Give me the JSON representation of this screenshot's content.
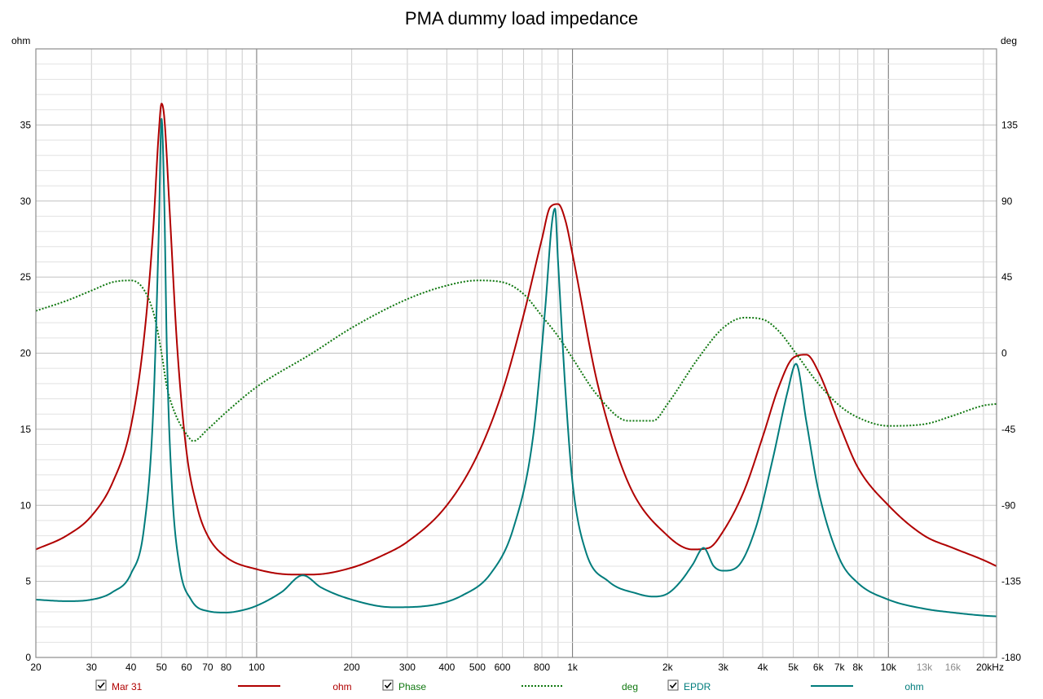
{
  "chart_data": {
    "type": "line",
    "title": "PMA dummy load impedance",
    "left_axis": {
      "unit": "ohm",
      "range": [
        0,
        40
      ],
      "ticks": [
        0,
        5,
        10,
        15,
        20,
        25,
        30,
        35
      ]
    },
    "right_axis": {
      "unit": "deg",
      "range": [
        -180,
        180
      ],
      "ticks": [
        -180,
        -135,
        -90,
        -45,
        0,
        45,
        90,
        135
      ]
    },
    "x_axis": {
      "scale": "log",
      "range": [
        20,
        22000
      ],
      "unit": "Hz",
      "tick_labels": [
        {
          "f": 20,
          "label": "20"
        },
        {
          "f": 30,
          "label": "30"
        },
        {
          "f": 40,
          "label": "40"
        },
        {
          "f": 50,
          "label": "50"
        },
        {
          "f": 60,
          "label": "60"
        },
        {
          "f": 70,
          "label": "70"
        },
        {
          "f": 80,
          "label": "80"
        },
        {
          "f": 100,
          "label": "100"
        },
        {
          "f": 200,
          "label": "200"
        },
        {
          "f": 300,
          "label": "300"
        },
        {
          "f": 400,
          "label": "400"
        },
        {
          "f": 500,
          "label": "500"
        },
        {
          "f": 600,
          "label": "600"
        },
        {
          "f": 800,
          "label": "800"
        },
        {
          "f": 1000,
          "label": "1k"
        },
        {
          "f": 2000,
          "label": "2k"
        },
        {
          "f": 3000,
          "label": "3k"
        },
        {
          "f": 4000,
          "label": "4k"
        },
        {
          "f": 5000,
          "label": "5k"
        },
        {
          "f": 6000,
          "label": "6k"
        },
        {
          "f": 7000,
          "label": "7k"
        },
        {
          "f": 8000,
          "label": "8k"
        },
        {
          "f": 10000,
          "label": "10k"
        },
        {
          "f": 13000,
          "label": "13k",
          "faded": true
        },
        {
          "f": 16000,
          "label": "16k",
          "faded": true
        },
        {
          "f": 20000,
          "label": "20kHz"
        }
      ]
    },
    "grid": true,
    "series": [
      {
        "name": "Mar 31",
        "unit": "ohm",
        "axis": "left",
        "color": "#b00000",
        "style": "solid",
        "x": [
          20,
          25,
          30,
          35,
          40,
          44,
          47,
          49,
          50,
          51,
          53,
          56,
          60,
          65,
          70,
          80,
          100,
          130,
          150,
          200,
          250,
          300,
          400,
          500,
          600,
          700,
          800,
          850,
          900,
          950,
          1000,
          1200,
          1500,
          2000,
          2400,
          2700,
          3000,
          3500,
          4000,
          4500,
          5000,
          5500,
          6000,
          7000,
          8000,
          10000,
          13000,
          16000,
          20000,
          22000
        ],
        "values": [
          7.1,
          8.0,
          9.3,
          11.5,
          15.2,
          21.0,
          28.0,
          34.5,
          36.4,
          35.5,
          29.5,
          20.5,
          13.5,
          9.8,
          8.0,
          6.6,
          5.8,
          5.45,
          5.45,
          5.9,
          6.7,
          7.6,
          10.0,
          13.3,
          17.5,
          22.5,
          27.5,
          29.6,
          29.8,
          28.7,
          26.5,
          18.0,
          11.5,
          8.0,
          7.1,
          7.2,
          8.3,
          11.0,
          14.5,
          17.8,
          19.7,
          19.9,
          18.8,
          15.3,
          12.5,
          10.0,
          8.0,
          7.2,
          6.4,
          6.0
        ]
      },
      {
        "name": "Phase",
        "unit": "deg",
        "axis": "right",
        "color": "#107810",
        "style": "dotted",
        "x": [
          20,
          25,
          30,
          35,
          40,
          43,
          46,
          48,
          50,
          52,
          55,
          60,
          63,
          70,
          80,
          100,
          150,
          200,
          300,
          400,
          500,
          600,
          700,
          800,
          900,
          1000,
          1200,
          1500,
          1800,
          2000,
          2500,
          3000,
          3500,
          4000,
          4500,
          5000,
          6000,
          7000,
          8000,
          10000,
          13000,
          16000,
          20000,
          22000
        ],
        "values": [
          25,
          31,
          37,
          42,
          43,
          40,
          30,
          18,
          0,
          -20,
          -35,
          -48,
          -52,
          -45,
          -35,
          -20,
          0,
          15,
          32,
          40,
          43,
          42,
          35,
          22,
          10,
          -3,
          -25,
          -40,
          -40,
          -30,
          -3,
          15,
          21,
          20,
          13,
          2,
          -18,
          -31,
          -38,
          -43,
          -42,
          -37,
          -31,
          -30
        ]
      },
      {
        "name": "EPDR",
        "unit": "ohm",
        "axis": "left",
        "color": "#007c7c",
        "style": "solid",
        "x": [
          20,
          25,
          30,
          35,
          40,
          44,
          47,
          49,
          50,
          51,
          52,
          54,
          57,
          62,
          70,
          80,
          90,
          100,
          120,
          140,
          160,
          200,
          270,
          350,
          450,
          550,
          650,
          750,
          820,
          860,
          880,
          900,
          950,
          1000,
          1100,
          1300,
          1600,
          1800,
          2000,
          2200,
          2400,
          2600,
          2800,
          3000,
          3300,
          3800,
          4300,
          4800,
          5100,
          5500,
          6000,
          7000,
          8000,
          10000,
          13000,
          16000,
          20000,
          22000
        ],
        "values": [
          3.8,
          3.7,
          3.8,
          4.3,
          5.5,
          8.5,
          16.0,
          28.0,
          35.4,
          30.0,
          20.0,
          11.0,
          6.0,
          3.8,
          3.05,
          2.95,
          3.1,
          3.4,
          4.3,
          5.4,
          4.6,
          3.8,
          3.3,
          3.4,
          4.1,
          5.5,
          8.5,
          14.5,
          23.0,
          28.5,
          29.5,
          26.0,
          17.5,
          11.5,
          7.0,
          5.0,
          4.2,
          4.0,
          4.2,
          5.0,
          6.1,
          7.2,
          6.0,
          5.7,
          5.9,
          8.5,
          13.0,
          17.5,
          19.3,
          15.5,
          11.0,
          6.5,
          4.9,
          3.8,
          3.2,
          2.95,
          2.75,
          2.7
        ]
      }
    ],
    "legend": {
      "placement": "bottom",
      "items": [
        {
          "label": "Mar 31",
          "unit": "ohm",
          "checked": true,
          "color": "#b00000",
          "style": "solid"
        },
        {
          "label": "Phase",
          "unit": "deg",
          "checked": true,
          "color": "#107810",
          "style": "dotted"
        },
        {
          "label": "EPDR",
          "unit": "ohm",
          "checked": true,
          "color": "#007c7c",
          "style": "solid"
        }
      ]
    }
  }
}
